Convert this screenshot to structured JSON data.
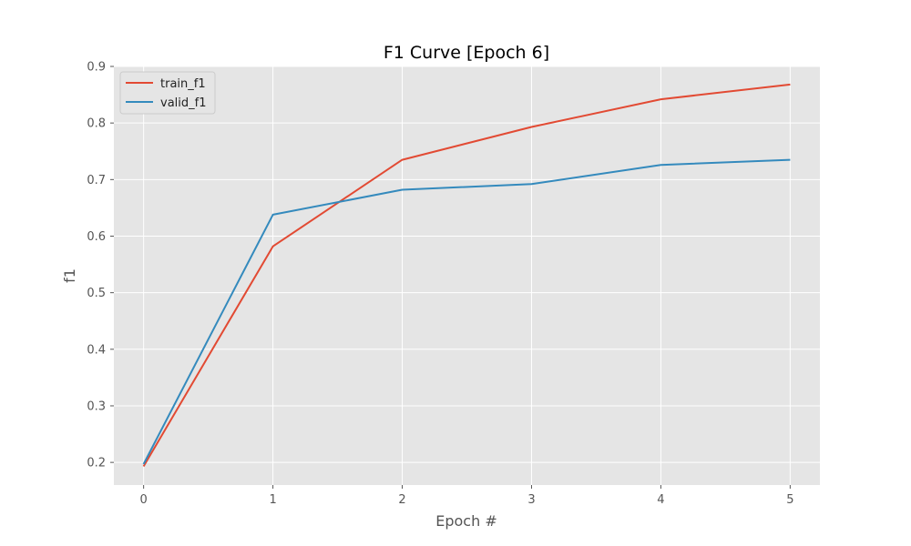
{
  "chart_data": {
    "type": "line",
    "title": "F1 Curve [Epoch 6]",
    "xlabel": "Epoch #",
    "ylabel": "f1",
    "x": [
      0,
      1,
      2,
      3,
      4,
      5
    ],
    "xticks": [
      "0",
      "1",
      "2",
      "3",
      "4",
      "5"
    ],
    "xlim": [
      -0.23,
      5.23
    ],
    "yticks": [
      "0.2",
      "0.3",
      "0.4",
      "0.5",
      "0.6",
      "0.7",
      "0.8",
      "0.9"
    ],
    "ylim": [
      0.16,
      0.9
    ],
    "grid": true,
    "legend_position": "top-left",
    "colors": {
      "plot_background": "#e5e5e5",
      "grid": "#ffffff"
    },
    "series": [
      {
        "name": "train_f1",
        "color": "#e24a33",
        "values": [
          0.193,
          0.582,
          0.735,
          0.793,
          0.842,
          0.868
        ]
      },
      {
        "name": "valid_f1",
        "color": "#348abd",
        "values": [
          0.197,
          0.638,
          0.682,
          0.692,
          0.726,
          0.735
        ]
      }
    ]
  }
}
